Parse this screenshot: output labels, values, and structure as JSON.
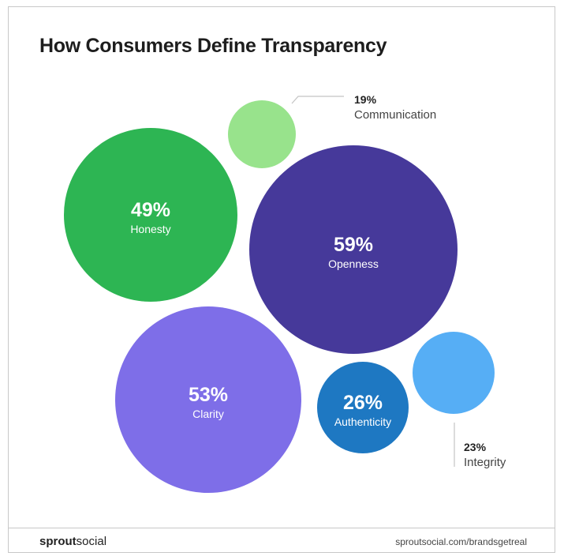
{
  "chart_data": {
    "type": "bubble",
    "title": "How Consumers Define Transparency",
    "unit": "%",
    "items": [
      {
        "label": "Communication",
        "value": 19,
        "display": "19%",
        "color": "#98e38c",
        "label_position": "outside"
      },
      {
        "label": "Honesty",
        "value": 49,
        "display": "49%",
        "color": "#2db553",
        "label_position": "inside"
      },
      {
        "label": "Openness",
        "value": 59,
        "display": "59%",
        "color": "#46399a",
        "label_position": "inside"
      },
      {
        "label": "Clarity",
        "value": 53,
        "display": "53%",
        "color": "#7e6ee8",
        "label_position": "inside"
      },
      {
        "label": "Authenticity",
        "value": 26,
        "display": "26%",
        "color": "#1e78c2",
        "label_position": "inside"
      },
      {
        "label": "Integrity",
        "value": 23,
        "display": "23%",
        "color": "#56aef5",
        "label_position": "outside"
      }
    ]
  },
  "footer": {
    "logo_bold": "sprout",
    "logo_light": "social",
    "url": "sproutsocial.com/brandsgetreal"
  }
}
